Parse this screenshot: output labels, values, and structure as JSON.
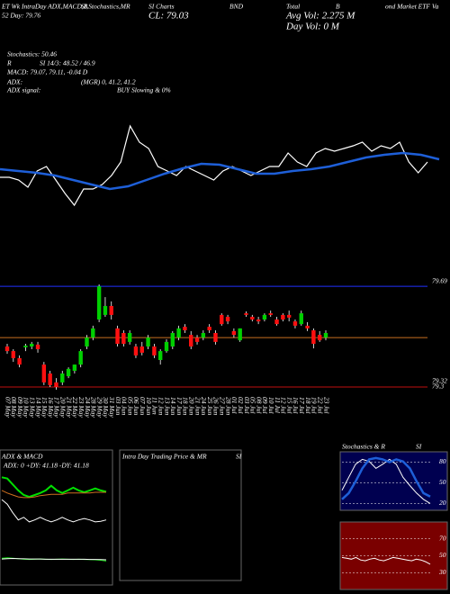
{
  "header": {
    "row1": [
      "ET Wk IntraDay ADX,MACD,B",
      "SI,Stochastics,MR",
      "SI Charts",
      "BND",
      "Total",
      "B",
      "ond Market ETF Va"
    ],
    "row2": [
      "52 Day: 79.76",
      "CL: 79.03",
      "Avg Vol: 2.275 M"
    ],
    "row3": "Day Vol: 0  M",
    "info": [
      "Stochastics: 50.46",
      "R",
      "SI 14/3: 48.52 / 46.9",
      "MACD: 79.07, 79.11, -0.04 D",
      "ADX:",
      "(MGR) 0, 41.2, 41.2",
      "ADX signal:",
      "BUY Slowing & 0%"
    ]
  },
  "chart_data": [
    {
      "type": "line",
      "ylim": [
        0,
        100
      ],
      "series": [
        {
          "color": "#ffffff",
          "values": [
            35.8,
            35.8,
            33.3,
            26.7,
            41.7,
            45.8,
            33.3,
            20.8,
            10,
            25,
            25,
            29.2,
            37.5,
            50,
            83.3,
            68.3,
            62.5,
            45.8,
            41.7,
            37.5,
            45.8,
            41.7,
            37.5,
            33.3,
            41.7,
            45.8,
            41.7,
            37.5,
            41.7,
            45.8,
            45.8,
            58.3,
            50,
            45.8,
            58.3,
            62.5,
            60,
            62.5,
            65,
            68.3,
            60,
            65,
            62.5,
            68.3,
            50,
            40,
            50
          ]
        },
        {
          "color": "#1e5fd8",
          "values": [
            43.3,
            41.7,
            40,
            37.5,
            33.3,
            29.2,
            25,
            27.5,
            33.3,
            39.2,
            44.2,
            48.3,
            47.5,
            43.3,
            39.2,
            39.2,
            41.7,
            43.3,
            45.8,
            50,
            54.2,
            56.7,
            58.3,
            56.7,
            52.5
          ]
        }
      ]
    },
    {
      "type": "candlestick",
      "ylim": [
        79.28,
        79.7
      ],
      "yticks": [
        79.69,
        79.32,
        79.3
      ],
      "up_color": "#00d000",
      "down_color": "#ff1010",
      "hlines": [
        {
          "value": 79.673,
          "color": "#2030ff"
        },
        {
          "value": 79.483,
          "color": "#c87020"
        },
        {
          "value": 79.3,
          "color": "#c01010"
        }
      ],
      "categories": [
        "07 May",
        "08 May",
        "09 May",
        "10 May",
        "13 May",
        "14 May",
        "15 May",
        "16 May",
        "17 May",
        "20 May",
        "21 May",
        "22 May",
        "23 May",
        "24 May",
        "28 May",
        "29 May",
        "30 May",
        "31 May",
        "03 Jun",
        "04 Jun",
        "05 Jun",
        "06 Jun",
        "07 Jun",
        "10 Jun",
        "11 Jun",
        "12 Jun",
        "13 Jun",
        "14 Jun",
        "17 Jun",
        "18 Jun",
        "20 Jun",
        "21 Jun",
        "24 Jun",
        "25 Jun",
        "26 Jun",
        "27 Jun",
        "28 Jun",
        "01 Jul",
        "02 Jul",
        "03 Jul",
        "05 Jul",
        "08 Jul",
        "09 Jul",
        "10 Jul",
        "11 Jul",
        "12 Jul",
        "15 Jul",
        "16 Jul",
        "17 Jul",
        "18 Jul",
        "19 Jul",
        "22 Jul",
        "23 Jul"
      ],
      "open": [
        79.45,
        79.433,
        79.407,
        79.447,
        79.45,
        79.457,
        79.383,
        79.35,
        79.317,
        79.317,
        79.34,
        79.36,
        79.383,
        79.45,
        79.483,
        79.55,
        79.567,
        79.6,
        79.517,
        79.5,
        79.467,
        79.45,
        79.45,
        79.45,
        79.45,
        79.4,
        79.433,
        79.45,
        79.483,
        79.523,
        79.493,
        79.483,
        79.483,
        79.523,
        79.5,
        79.567,
        79.56,
        79.507,
        79.473,
        79.573,
        79.56,
        79.55,
        79.55,
        79.573,
        79.55,
        79.567,
        79.567,
        79.543,
        79.533,
        79.527,
        79.51,
        79.493,
        79.483
      ],
      "high": [
        79.46,
        79.44,
        79.417,
        79.46,
        79.467,
        79.467,
        79.393,
        79.36,
        79.333,
        79.36,
        79.373,
        79.383,
        79.44,
        79.493,
        79.527,
        79.68,
        79.633,
        79.617,
        79.527,
        79.51,
        79.51,
        79.46,
        79.467,
        79.493,
        79.46,
        79.44,
        79.477,
        79.507,
        79.527,
        79.533,
        79.507,
        79.493,
        79.51,
        79.533,
        79.51,
        79.573,
        79.567,
        79.517,
        79.517,
        79.58,
        79.567,
        79.56,
        79.573,
        79.583,
        79.56,
        79.573,
        79.583,
        79.55,
        79.583,
        79.54,
        79.517,
        79.507,
        79.51
      ],
      "low": [
        79.423,
        79.393,
        79.373,
        79.433,
        79.44,
        79.427,
        79.307,
        79.3,
        79.29,
        79.307,
        79.333,
        79.35,
        79.373,
        79.44,
        79.473,
        79.54,
        79.56,
        79.55,
        79.45,
        79.45,
        79.457,
        79.407,
        79.417,
        79.44,
        79.407,
        79.383,
        79.427,
        79.44,
        79.473,
        79.5,
        79.44,
        79.457,
        79.473,
        79.5,
        79.457,
        79.527,
        79.533,
        79.483,
        79.467,
        79.56,
        79.543,
        79.533,
        79.543,
        79.56,
        79.527,
        79.543,
        79.543,
        79.517,
        79.527,
        79.507,
        79.443,
        79.467,
        79.473
      ],
      "close": [
        79.433,
        79.407,
        79.383,
        79.453,
        79.46,
        79.44,
        79.317,
        79.307,
        79.3,
        79.35,
        79.367,
        79.383,
        79.433,
        79.483,
        79.517,
        79.673,
        79.6,
        79.567,
        79.46,
        79.46,
        79.5,
        79.417,
        79.427,
        79.483,
        79.417,
        79.433,
        79.467,
        79.5,
        79.517,
        79.51,
        79.45,
        79.467,
        79.5,
        79.51,
        79.467,
        79.533,
        79.543,
        79.493,
        79.517,
        79.567,
        79.55,
        79.543,
        79.567,
        79.567,
        79.533,
        79.55,
        79.557,
        79.527,
        79.573,
        79.517,
        79.46,
        79.473,
        79.5
      ]
    },
    {
      "type": "line",
      "title": "ADX & MACD",
      "subtitle": "ADX: 0  +DY: 41.18  -DY: 41.18",
      "ylim": [
        0,
        100
      ],
      "series": [
        {
          "color": "#00e000",
          "values": [
            75,
            73,
            64,
            55,
            48,
            45,
            48,
            51,
            55,
            62,
            55,
            51,
            55,
            59,
            55,
            52,
            55,
            58,
            55,
            53
          ]
        },
        {
          "color": "#d07020",
          "values": [
            55,
            51,
            48,
            45,
            44,
            44,
            45,
            47,
            48,
            49,
            49,
            49,
            51,
            51,
            51,
            51,
            51,
            52,
            52,
            52
          ]
        },
        {
          "color": "#ffffff",
          "values": [
            41,
            34,
            21,
            10,
            14,
            7,
            10,
            14,
            10,
            7,
            10,
            14,
            10,
            7,
            10,
            12,
            10,
            7,
            8,
            10
          ]
        }
      ]
    },
    {
      "type": "line",
      "ylim": [
        -1,
        1
      ],
      "series": [
        {
          "color": "#00e000",
          "values": [
            0.1,
            0.12,
            0.1,
            0.08,
            0.05,
            0.04,
            0.05,
            0.06,
            0.05,
            0.04,
            0.05,
            0.06,
            0.05,
            0.04,
            0.05,
            0.04,
            0.03,
            0.02,
            0.0,
            -0.04
          ]
        },
        {
          "color": "#ffffff",
          "values": [
            0.06,
            0.08,
            0.09,
            0.08,
            0.07,
            0.06,
            0.06,
            0.06,
            0.05,
            0.05,
            0.05,
            0.05,
            0.05,
            0.05,
            0.05,
            0.05,
            0.04,
            0.04,
            0.03,
            0.02
          ]
        }
      ]
    },
    {
      "type": "panel",
      "title": "Intra Day Trading Price & MR",
      "title2": "SI"
    },
    {
      "type": "line",
      "title": "Stochastics & R",
      "title2": "SI",
      "ylim": [
        10,
        95
      ],
      "yticks": [
        80,
        50,
        20
      ],
      "grid": true,
      "background": "#000050",
      "series": [
        {
          "color": "#ffffff",
          "values": [
            39,
            58,
            77,
            84,
            81,
            71,
            77,
            84,
            77,
            58,
            46,
            35,
            26,
            20
          ]
        },
        {
          "color": "#1e5fd8",
          "values": [
            26,
            35,
            52,
            71,
            84,
            86,
            84,
            80,
            84,
            81,
            71,
            52,
            35,
            30
          ]
        }
      ]
    },
    {
      "type": "line",
      "ylim": [
        10,
        90
      ],
      "yticks": [
        70,
        50,
        30
      ],
      "grid": true,
      "background": "#7a0000",
      "series": [
        {
          "color": "#ffffff",
          "values": [
            48,
            47,
            46,
            48,
            45,
            44,
            46,
            47,
            45,
            44,
            46,
            48,
            47,
            46,
            45,
            44,
            46,
            45,
            43,
            40
          ]
        }
      ]
    }
  ]
}
